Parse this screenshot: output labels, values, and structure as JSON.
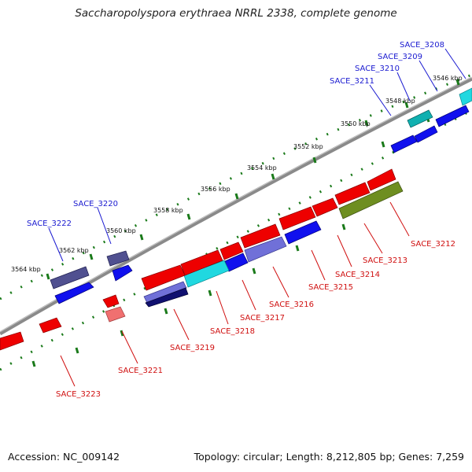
{
  "title": "Saccharopolyspora erythraea NRRL 2338, complete genome",
  "footer": {
    "accession": "Accession: NC_009142",
    "summary": "Topology: circular; Length: 8,212,805 bp; Genes: 7,259"
  },
  "ticks": [
    "3546 kbp",
    "3548 kbp",
    "3550 kbp",
    "3552 kbp",
    "3554 kbp",
    "3556 kbp",
    "3558 kbp",
    "3560 kbp",
    "3562 kbp",
    "3564 kbp"
  ],
  "genes_forward": [
    "SACE_3208",
    "SACE_3209",
    "SACE_3210",
    "SACE_3211",
    "SACE_3220",
    "SACE_3222"
  ],
  "genes_reverse": [
    "SACE_3212",
    "SACE_3213",
    "SACE_3214",
    "SACE_3215",
    "SACE_3216",
    "SACE_3217",
    "SACE_3218",
    "SACE_3219",
    "SACE_3221",
    "SACE_3223"
  ],
  "colors": {
    "forward_label": "#1a1ad0",
    "reverse_label": "#d01010",
    "backbone": "#8a8a8a",
    "dots": "#1a7a1a",
    "red": "#ee0000",
    "blue": "#1010ee",
    "cyan": "#20d8e0",
    "teal": "#10b0b0",
    "navy": "#303080",
    "slate": "#505090",
    "periwinkle": "#7070d8",
    "olive": "#6e8e20",
    "pink": "#f07070"
  }
}
